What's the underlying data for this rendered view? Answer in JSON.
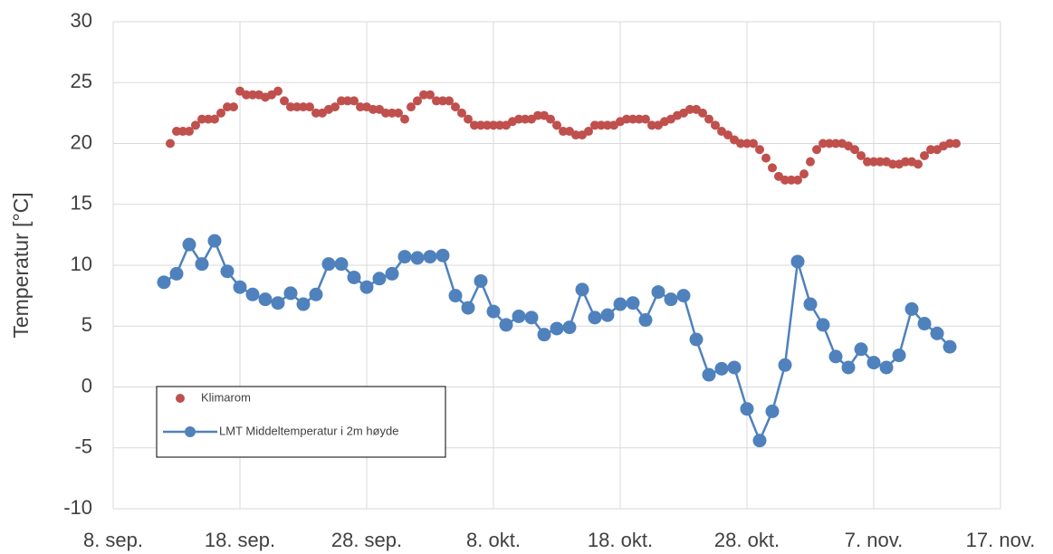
{
  "chart_data": {
    "type": "line",
    "y_label": "Temperatur [°C]",
    "xlim": [
      0,
      70
    ],
    "ylim": [
      -10,
      30
    ],
    "xticks": [
      {
        "value": 0,
        "label": "8. sep."
      },
      {
        "value": 10,
        "label": "18. sep."
      },
      {
        "value": 20,
        "label": "28. sep."
      },
      {
        "value": 30,
        "label": "8. okt."
      },
      {
        "value": 40,
        "label": "18. okt."
      },
      {
        "value": 50,
        "label": "28. okt."
      },
      {
        "value": 60,
        "label": "7. nov."
      },
      {
        "value": 70,
        "label": "17. nov."
      }
    ],
    "yticks": [
      -10,
      -5,
      0,
      5,
      10,
      15,
      20,
      25,
      30
    ],
    "grid": true,
    "series": [
      {
        "name": "Klimarom",
        "color": "#c0504d",
        "style": "scatter",
        "x": [
          4.5,
          5,
          5.5,
          6,
          6.5,
          7,
          7.5,
          8,
          8.5,
          9,
          9.5,
          10,
          10.5,
          11,
          11.5,
          12,
          12.5,
          13,
          13.5,
          14,
          14.5,
          15,
          15.5,
          16,
          16.5,
          17,
          17.5,
          18,
          18.5,
          19,
          19.5,
          20,
          20.5,
          21,
          21.5,
          22,
          22.5,
          23,
          23.5,
          24,
          24.5,
          25,
          25.5,
          26,
          26.5,
          27,
          27.5,
          28,
          28.5,
          29,
          29.5,
          30,
          30.5,
          31,
          31.5,
          32,
          32.5,
          33,
          33.5,
          34,
          34.5,
          35,
          35.5,
          36,
          36.5,
          37,
          37.5,
          38,
          38.5,
          39,
          39.5,
          40,
          40.5,
          41,
          41.5,
          42,
          42.5,
          43,
          43.5,
          44,
          44.5,
          45,
          45.5,
          46,
          46.5,
          47,
          47.5,
          48,
          48.5,
          49,
          49.5,
          50,
          50.5,
          51,
          51.5,
          52,
          52.5,
          53,
          53.5,
          54,
          54.5,
          55,
          55.5,
          56,
          56.5,
          57,
          57.5,
          58,
          58.5,
          59,
          59.5,
          60,
          60.5,
          61,
          61.5,
          62,
          62.5,
          63,
          63.5,
          64,
          64.5,
          65,
          65.5,
          66,
          66.5
        ],
        "values": [
          20.0,
          21.0,
          21.0,
          21.0,
          21.5,
          22.0,
          22.0,
          22.0,
          22.5,
          23.0,
          23.0,
          24.3,
          24.0,
          24.0,
          24.0,
          23.8,
          24.0,
          24.3,
          23.5,
          23.0,
          23.0,
          23.0,
          23.0,
          22.5,
          22.5,
          22.8,
          23.0,
          23.5,
          23.5,
          23.5,
          23.0,
          23.0,
          22.8,
          22.8,
          22.5,
          22.5,
          22.5,
          22.0,
          23.0,
          23.5,
          24.0,
          24.0,
          23.5,
          23.5,
          23.5,
          23.0,
          22.5,
          22.0,
          21.5,
          21.5,
          21.5,
          21.5,
          21.5,
          21.5,
          21.8,
          22.0,
          22.0,
          22.0,
          22.3,
          22.3,
          22.0,
          21.5,
          21.0,
          21.0,
          20.7,
          20.7,
          21.0,
          21.5,
          21.5,
          21.5,
          21.5,
          21.8,
          22.0,
          22.0,
          22.0,
          22.0,
          21.5,
          21.5,
          21.8,
          22.0,
          22.3,
          22.5,
          22.8,
          22.8,
          22.5,
          22.0,
          21.5,
          21.0,
          20.7,
          20.3,
          20.0,
          20.0,
          20.0,
          19.5,
          18.8,
          18.0,
          17.3,
          17.0,
          17.0,
          17.0,
          17.5,
          18.5,
          19.5,
          20.0,
          20.0,
          20.0,
          20.0,
          19.8,
          19.5,
          19.0,
          18.5,
          18.5,
          18.5,
          18.5,
          18.3,
          18.3,
          18.5,
          18.5,
          18.3,
          19.0,
          19.5,
          19.5,
          19.8,
          20.0,
          20.0
        ]
      },
      {
        "name": "LMT Middeltemperatur i 2m høyde",
        "color": "#4f81bd",
        "style": "line",
        "x": [
          4,
          5,
          6,
          7,
          8,
          9,
          10,
          11,
          12,
          13,
          14,
          15,
          16,
          17,
          18,
          19,
          20,
          21,
          22,
          23,
          24,
          25,
          26,
          27,
          28,
          29,
          30,
          31,
          32,
          33,
          34,
          35,
          36,
          37,
          38,
          39,
          40,
          41,
          42,
          43,
          44,
          45,
          46,
          47,
          48,
          49,
          50,
          51,
          52,
          53,
          54,
          55,
          56,
          57,
          58,
          59,
          60,
          61,
          62,
          63,
          64,
          65,
          66
        ],
        "values": [
          8.6,
          9.3,
          11.7,
          10.1,
          12.0,
          9.5,
          8.2,
          7.6,
          7.2,
          6.9,
          7.7,
          6.8,
          7.6,
          10.1,
          10.1,
          9.0,
          8.2,
          8.9,
          9.3,
          10.7,
          10.6,
          10.7,
          10.8,
          7.5,
          6.5,
          8.7,
          6.2,
          5.1,
          5.8,
          5.7,
          4.3,
          4.8,
          4.9,
          8.0,
          5.7,
          5.9,
          6.8,
          6.9,
          5.5,
          7.8,
          7.2,
          7.5,
          3.9,
          1.0,
          1.5,
          1.6,
          -1.8,
          -4.4,
          -2.0,
          1.8,
          10.3,
          6.8,
          5.1,
          2.5,
          1.6,
          3.1,
          2.0,
          1.6,
          2.6,
          6.4,
          5.2,
          4.4,
          3.3
        ]
      }
    ]
  }
}
